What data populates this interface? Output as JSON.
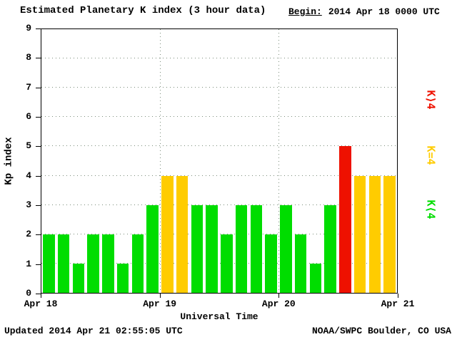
{
  "header": {
    "title": "Estimated Planetary K index (3 hour data)",
    "begin_label": "Begin:",
    "begin_value": "2014 Apr 18 0000 UTC"
  },
  "footer": {
    "updated": "Updated 2014 Apr 21 02:55:05 UTC",
    "source": "NOAA/SWPC Boulder, CO USA"
  },
  "chart_data": {
    "type": "bar",
    "title": "Estimated Planetary K index (3 hour data)",
    "xlabel": "Universal Time",
    "ylabel": "Kp index",
    "ylim": [
      0,
      9
    ],
    "y_ticks": [
      0,
      1,
      2,
      3,
      4,
      5,
      6,
      7,
      8,
      9
    ],
    "x_tick_labels": [
      "Apr 18",
      "Apr 19",
      "Apr 20",
      "Apr 21"
    ],
    "bar_interval_hours": 3,
    "begin": "2014 Apr 18 0000 UTC",
    "values": [
      2,
      2,
      1,
      2,
      2,
      1,
      2,
      3,
      4,
      4,
      3,
      3,
      2,
      3,
      3,
      2,
      3,
      2,
      1,
      3,
      5,
      4,
      4,
      4
    ],
    "colors": {
      "k_lt4": "#00dd00",
      "k_eq4": "#ffcc00",
      "k_gt4": "#ee1100"
    },
    "color_rule": "green for K<4, yellow for K=4, red for K>4",
    "legend": [
      {
        "name": "k-gt-4",
        "label": "K⟩4",
        "color": "#ee1100"
      },
      {
        "name": "k-eq-4",
        "label": "K=4",
        "color": "#ffcc00"
      },
      {
        "name": "k-lt-4",
        "label": "K⟨4",
        "color": "#00dd00"
      }
    ],
    "grid": "dotted horizontal lines at each Kp integer, dotted vertical lines at day boundaries",
    "legend_position": "right margin, rotated"
  }
}
